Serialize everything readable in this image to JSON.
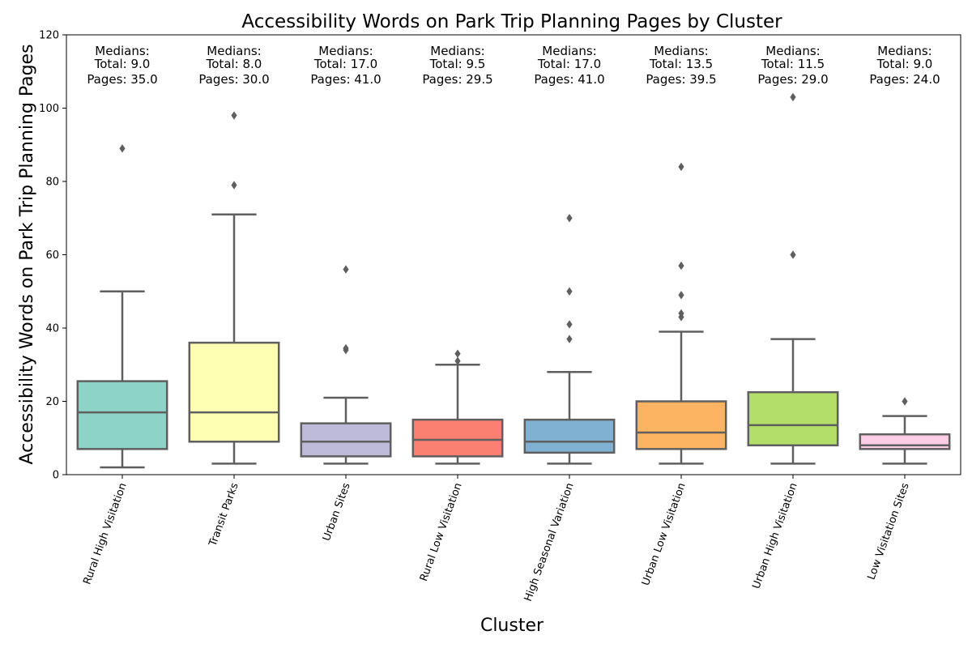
{
  "chart_data": {
    "type": "box",
    "title": "Accessibility Words on Park Trip Planning Pages by Cluster",
    "xlabel": "Cluster",
    "ylabel": "Accessibility Words on Park Trip Planning Pages",
    "ylim": [
      0,
      120
    ],
    "yticks": [
      0,
      20,
      40,
      60,
      80,
      100,
      120
    ],
    "grid": false,
    "median_prefix": "Medians:",
    "total_prefix": "Total: ",
    "pages_prefix": "Pages: ",
    "categories": [
      {
        "name": "Rural High Visitation",
        "color": "#8dd3c7",
        "whislo": 2,
        "q1": 7,
        "med": 17,
        "q3": 25.5,
        "whishi": 50,
        "fliers": [
          89
        ],
        "median_total": "9.0",
        "median_pages": "35.0"
      },
      {
        "name": "Transit Parks",
        "color": "#ffffb3",
        "whislo": 3,
        "q1": 9,
        "med": 17,
        "q3": 36,
        "whishi": 71,
        "fliers": [
          79,
          98
        ],
        "median_total": "8.0",
        "median_pages": "30.0"
      },
      {
        "name": "Urban Sites",
        "color": "#bebada",
        "whislo": 3,
        "q1": 5,
        "med": 9,
        "q3": 14,
        "whishi": 21,
        "fliers": [
          34,
          34.5,
          56
        ],
        "median_total": "17.0",
        "median_pages": "41.0"
      },
      {
        "name": "Rural Low Visitation",
        "color": "#fb8072",
        "whislo": 3,
        "q1": 5,
        "med": 9.5,
        "q3": 15,
        "whishi": 30,
        "fliers": [
          31,
          33
        ],
        "median_total": "9.5",
        "median_pages": "29.5"
      },
      {
        "name": "High Seasonal Variation",
        "color": "#80b1d3",
        "whislo": 3,
        "q1": 6,
        "med": 9,
        "q3": 15,
        "whishi": 28,
        "fliers": [
          37,
          41,
          50,
          70
        ],
        "median_total": "17.0",
        "median_pages": "41.0"
      },
      {
        "name": "Urban Low Visitation",
        "color": "#fdb462",
        "whislo": 3,
        "q1": 7,
        "med": 11.5,
        "q3": 20,
        "whishi": 39,
        "fliers": [
          43,
          44,
          49,
          57,
          84
        ],
        "median_total": "13.5",
        "median_pages": "39.5"
      },
      {
        "name": "Urban High Visitation",
        "color": "#b3de69",
        "whislo": 3,
        "q1": 8,
        "med": 13.5,
        "q3": 22.5,
        "whishi": 37,
        "fliers": [
          60,
          103
        ],
        "median_total": "11.5",
        "median_pages": "29.0"
      },
      {
        "name": "Low Visitation Sites",
        "color": "#fccde5",
        "whislo": 3,
        "q1": 7,
        "med": 8,
        "q3": 11,
        "whishi": 16,
        "fliers": [
          20
        ],
        "median_total": "9.0",
        "median_pages": "24.0"
      }
    ]
  }
}
